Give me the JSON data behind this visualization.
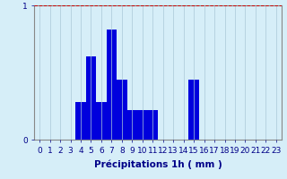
{
  "categories": [
    0,
    1,
    2,
    3,
    4,
    5,
    6,
    7,
    8,
    9,
    10,
    11,
    12,
    13,
    14,
    15,
    16,
    17,
    18,
    19,
    20,
    21,
    22,
    23
  ],
  "values": [
    0,
    0,
    0,
    0,
    0.28,
    0.62,
    0.28,
    0.82,
    0.45,
    0.22,
    0.22,
    0.22,
    0,
    0,
    0,
    0.45,
    0,
    0,
    0,
    0,
    0,
    0,
    0,
    0
  ],
  "bar_color": "#0000dd",
  "background_color": "#d6eef8",
  "grid_color": "#aac8d8",
  "xlabel": "Précipitations 1h ( mm )",
  "ylim": [
    0,
    1.0
  ],
  "yticks": [
    0,
    1
  ],
  "xlim": [
    -0.5,
    23.5
  ],
  "xlabel_fontsize": 7.5,
  "tick_fontsize": 6.5,
  "tick_color": "#000088",
  "label_color": "#000088",
  "red_line_color": "#cc0000",
  "spine_color": "#888888"
}
